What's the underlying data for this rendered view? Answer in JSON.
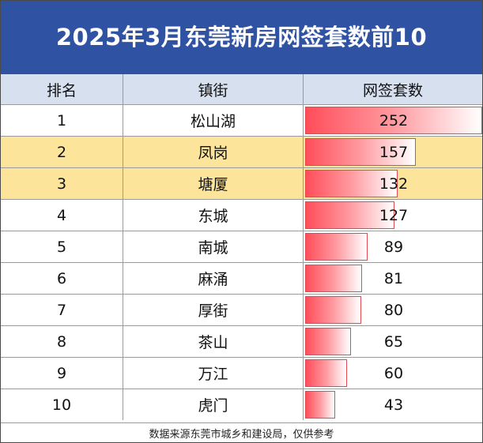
{
  "title": "2025年3月东莞新房网签套数前10",
  "header": {
    "rank": "排名",
    "town": "镇街",
    "count": "网签套数"
  },
  "colors": {
    "title_bg": "#2f52a3",
    "header_bg": "#d7e0ef",
    "highlight_bg": "#fce59a",
    "bar_red": "#ff4e5a"
  },
  "chart_data": {
    "type": "table",
    "title": "2025年3月东莞新房网签套数前10",
    "columns": [
      "排名",
      "镇街",
      "网签套数"
    ],
    "rows": [
      {
        "rank": "1",
        "town": "松山湖",
        "value": 252,
        "highlight": false
      },
      {
        "rank": "2",
        "town": "凤岗",
        "value": 157,
        "highlight": true
      },
      {
        "rank": "3",
        "town": "塘厦",
        "value": 132,
        "highlight": true
      },
      {
        "rank": "4",
        "town": "东城",
        "value": 127,
        "highlight": false
      },
      {
        "rank": "5",
        "town": "南城",
        "value": 89,
        "highlight": false
      },
      {
        "rank": "6",
        "town": "麻涌",
        "value": 81,
        "highlight": false
      },
      {
        "rank": "7",
        "town": "厚街",
        "value": 80,
        "highlight": false
      },
      {
        "rank": "8",
        "town": "茶山",
        "value": 65,
        "highlight": false
      },
      {
        "rank": "9",
        "town": "万江",
        "value": 60,
        "highlight": false
      },
      {
        "rank": "10",
        "town": "虎门",
        "value": 43,
        "highlight": false
      }
    ],
    "data_bar_max": 252
  },
  "footer": "数据来源东莞市城乡和建设局，仅供参考"
}
